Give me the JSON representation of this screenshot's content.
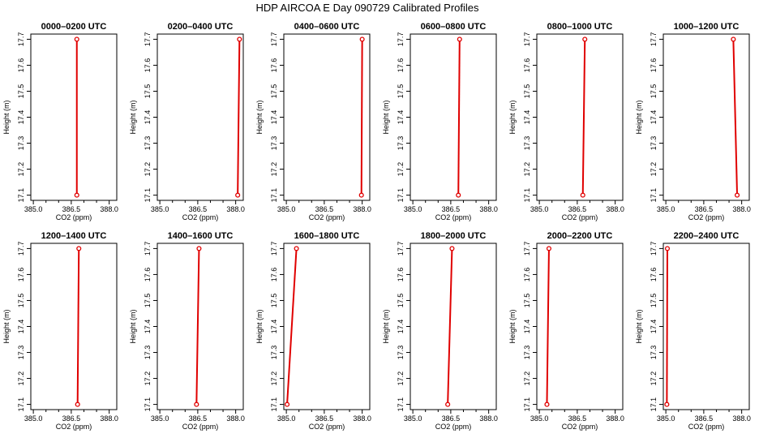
{
  "figure": {
    "title": "HDP AIRCOA E  Day 090729  Calibrated Profiles"
  },
  "colors": {
    "series": "#e00000",
    "axes": "#000000",
    "background": "#ffffff"
  },
  "chart_data": [
    {
      "type": "line",
      "title": "0000–0200 UTC",
      "xlabel": "CO2 (ppm)",
      "ylabel": "Height (m)",
      "x": [
        386.72,
        386.72
      ],
      "y": [
        17.1,
        17.7
      ]
    },
    {
      "type": "line",
      "title": "0200–0400 UTC",
      "xlabel": "CO2 (ppm)",
      "ylabel": "Height (m)",
      "x": [
        388.08,
        388.15
      ],
      "y": [
        17.1,
        17.7
      ]
    },
    {
      "type": "line",
      "title": "0400–0600 UTC",
      "xlabel": "CO2 (ppm)",
      "ylabel": "Height (m)",
      "x": [
        387.97,
        388.0
      ],
      "y": [
        17.1,
        17.7
      ]
    },
    {
      "type": "line",
      "title": "0600–0800 UTC",
      "xlabel": "CO2 (ppm)",
      "ylabel": "Height (m)",
      "x": [
        386.8,
        386.85
      ],
      "y": [
        17.1,
        17.7
      ]
    },
    {
      "type": "line",
      "title": "0800–1000 UTC",
      "xlabel": "CO2 (ppm)",
      "ylabel": "Height (m)",
      "x": [
        386.72,
        386.8
      ],
      "y": [
        17.1,
        17.7
      ]
    },
    {
      "type": "line",
      "title": "1000–1200 UTC",
      "xlabel": "CO2 (ppm)",
      "ylabel": "Height (m)",
      "x": [
        387.82,
        387.67
      ],
      "y": [
        17.1,
        17.7
      ]
    },
    {
      "type": "line",
      "title": "1200–1400 UTC",
      "xlabel": "CO2 (ppm)",
      "ylabel": "Height (m)",
      "x": [
        386.75,
        386.8
      ],
      "y": [
        17.1,
        17.7
      ]
    },
    {
      "type": "line",
      "title": "1400–1600 UTC",
      "xlabel": "CO2 (ppm)",
      "ylabel": "Height (m)",
      "x": [
        386.45,
        386.55
      ],
      "y": [
        17.1,
        17.7
      ]
    },
    {
      "type": "line",
      "title": "1600–1800 UTC",
      "xlabel": "CO2 (ppm)",
      "ylabel": "Height (m)",
      "x": [
        385.03,
        385.4
      ],
      "y": [
        17.1,
        17.7
      ]
    },
    {
      "type": "line",
      "title": "1800–2000 UTC",
      "xlabel": "CO2 (ppm)",
      "ylabel": "Height (m)",
      "x": [
        386.38,
        386.55
      ],
      "y": [
        17.1,
        17.7
      ]
    },
    {
      "type": "line",
      "title": "2000–2200 UTC",
      "xlabel": "CO2 (ppm)",
      "ylabel": "Height (m)",
      "x": [
        385.3,
        385.38
      ],
      "y": [
        17.1,
        17.7
      ]
    },
    {
      "type": "line",
      "title": "2200–2400 UTC",
      "xlabel": "CO2 (ppm)",
      "ylabel": "Height (m)",
      "x": [
        385.04,
        385.06
      ],
      "y": [
        17.1,
        17.7
      ]
    }
  ],
  "axes": {
    "xlim": [
      384.9,
      388.3
    ],
    "ylim": [
      17.08,
      17.72
    ],
    "xticks": [
      "385.0",
      "386.5",
      "388.0"
    ],
    "xticks_minor": [
      "385.5",
      "386.0",
      "387.0",
      "387.5"
    ],
    "yticks": [
      "17.1",
      "17.2",
      "17.3",
      "17.4",
      "17.5",
      "17.6",
      "17.7"
    ]
  }
}
